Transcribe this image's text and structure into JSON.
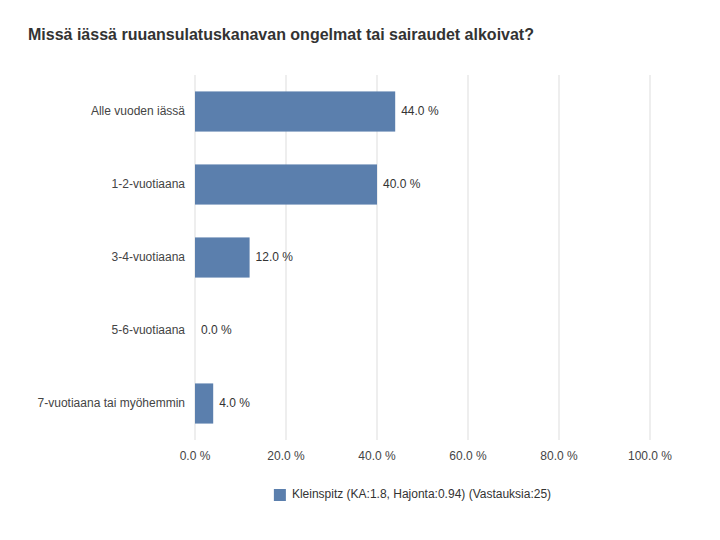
{
  "chart_data": {
    "type": "bar",
    "orientation": "horizontal",
    "title": "Missä iässä ruuansulatuskanavan ongelmat tai sairaudet alkoivat?",
    "categories": [
      "Alle vuoden iässä",
      "1-2-vuotiaana",
      "3-4-vuotiaana",
      "5-6-vuotiaana",
      "7-vuotiaana tai myöhemmin"
    ],
    "series": [
      {
        "name": "Kleinspitz (KA:1.8, Hajonta:0.94) (Vastauksia:25)",
        "color": "#5b7fad",
        "values": [
          44.0,
          40.0,
          12.0,
          0.0,
          4.0
        ],
        "value_labels": [
          "44.0 %",
          "40.0 %",
          "12.0 %",
          "0.0 %",
          "4.0 %"
        ]
      }
    ],
    "xlim": [
      0,
      100
    ],
    "xticks": [
      {
        "value": 0.0,
        "label": "0.0 %"
      },
      {
        "value": 20.0,
        "label": "20.0 %"
      },
      {
        "value": 40.0,
        "label": "40.0 %"
      },
      {
        "value": 60.0,
        "label": "60.0 %"
      },
      {
        "value": 80.0,
        "label": "80.0 %"
      },
      {
        "value": 100.0,
        "label": "100.0 %"
      }
    ],
    "grid": true,
    "legend": "bottom",
    "data_labels": true
  }
}
